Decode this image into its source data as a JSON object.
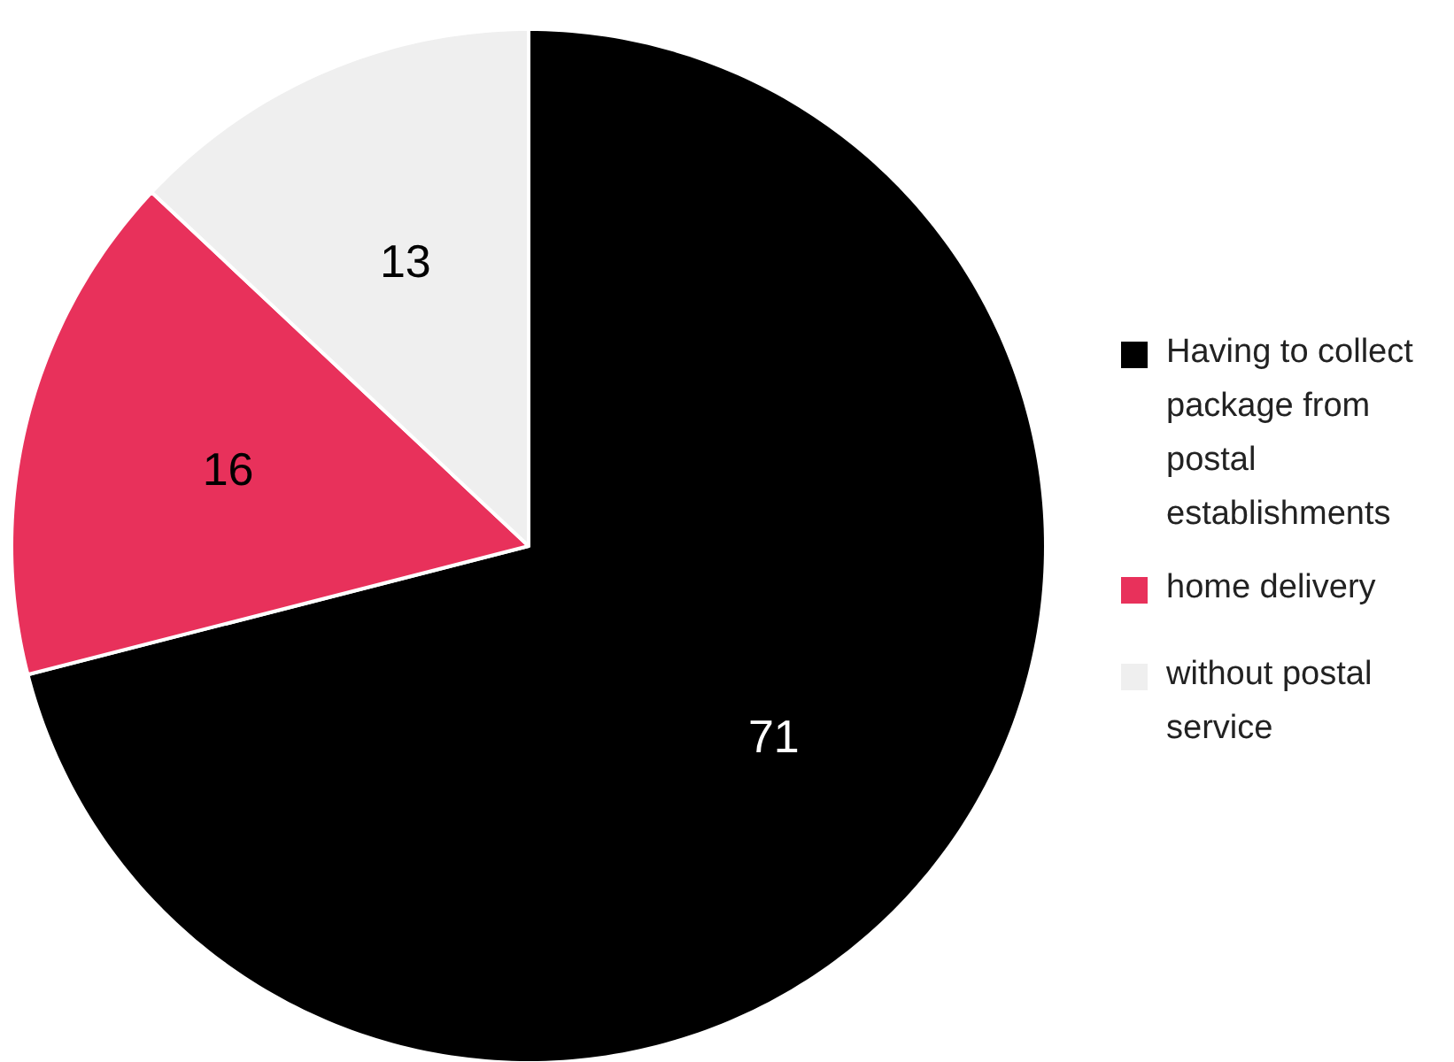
{
  "chart_data": {
    "type": "pie",
    "categories": [
      "Having to collect package from postal establishments",
      "home delivery",
      "without postal service"
    ],
    "values": [
      71,
      16,
      13
    ],
    "colors": [
      "#000000",
      "#e8315b",
      "#efefef"
    ],
    "data_labels": true,
    "legend": "right"
  }
}
